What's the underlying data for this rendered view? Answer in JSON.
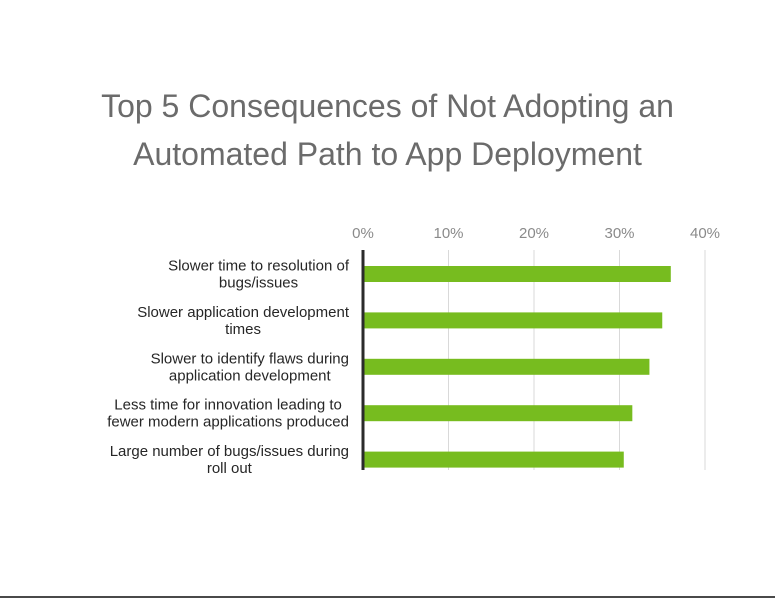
{
  "chart_data": {
    "type": "bar",
    "orientation": "horizontal",
    "title_lines": [
      "Top 5 Consequences of Not Adopting an",
      "Automated Path to App Deployment"
    ],
    "categories": [
      [
        "Slower time to resolution of",
        "bugs/issues"
      ],
      [
        "Slower application development",
        "times"
      ],
      [
        "Slower to identify flaws during",
        "application development"
      ],
      [
        "Less time for innovation leading to",
        "fewer modern applications produced"
      ],
      [
        "Large number of bugs/issues during",
        "roll out"
      ]
    ],
    "values": [
      36,
      35,
      33.5,
      31.5,
      30.5
    ],
    "xlim": [
      0,
      40
    ],
    "xticks": [
      0,
      10,
      20,
      30,
      40
    ],
    "tick_labels": [
      "0%",
      "10%",
      "20%",
      "30%",
      "40%"
    ],
    "xaxis_position": "top",
    "grid": true,
    "bar_color": "#77bc1f"
  }
}
